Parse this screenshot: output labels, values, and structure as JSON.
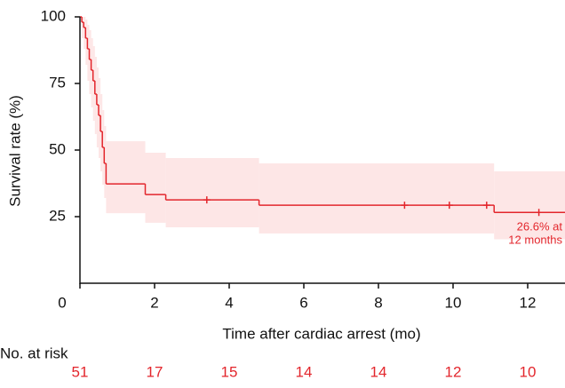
{
  "chart_data": {
    "type": "survival",
    "x_label": "Time after cardiac arrest (mo)",
    "y_label": "Survival rate (%)",
    "xlim": [
      0,
      13
    ],
    "xticks": [
      0,
      2,
      4,
      6,
      8,
      10,
      12
    ],
    "ylim": [
      0,
      100
    ],
    "yticks": [
      25,
      50,
      75,
      100
    ],
    "color": "#e3262c",
    "band_color": "#fde6e6",
    "series": [
      {
        "x": [
          0,
          0.05,
          0.1,
          0.15,
          0.2,
          0.25,
          0.3,
          0.35,
          0.4,
          0.45,
          0.5,
          0.55,
          0.6,
          0.65,
          0.7,
          1.75,
          2.3,
          4.8,
          11.1
        ],
        "values": [
          100,
          98,
          96,
          92,
          88,
          84,
          80,
          76,
          71,
          67,
          63,
          57,
          51,
          45,
          37.3,
          33.3,
          31.3,
          29.3,
          26.6
        ],
        "ci_lower": [
          100,
          92,
          88,
          82,
          76,
          71,
          66,
          61,
          56,
          51,
          47,
          42,
          37,
          32,
          26.3,
          22.7,
          21,
          18.7,
          16.5
        ],
        "ci_upper": [
          100,
          100,
          100,
          99,
          97,
          95,
          92,
          89,
          85,
          81,
          77,
          71,
          65,
          59,
          53.3,
          49,
          47,
          45,
          42
        ]
      }
    ],
    "censored": {
      "x": [
        3.4,
        8.7,
        9.9,
        10.9,
        12.3
      ],
      "values": [
        31.3,
        29.3,
        29.3,
        29.3,
        26.6
      ]
    },
    "annotation": [
      "26.6% at",
      "12 months"
    ],
    "risk_table": {
      "label": "No. at risk",
      "x": [
        0,
        2,
        4,
        6,
        8,
        10,
        12
      ],
      "values": [
        51,
        17,
        15,
        14,
        14,
        12,
        10
      ]
    }
  }
}
